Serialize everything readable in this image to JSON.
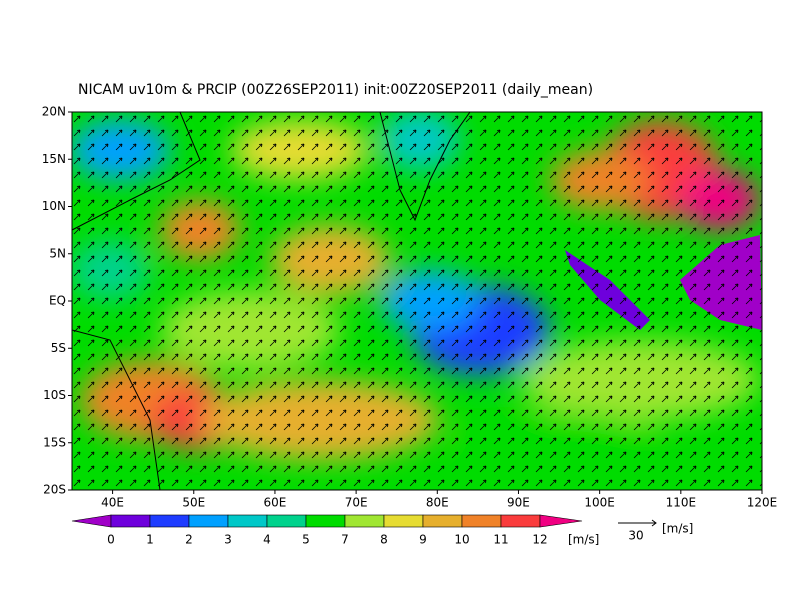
{
  "map": {
    "title": "NICAM uv10m & PRCIP (00Z26SEP2011) init:00Z20SEP2011 (daily_mean)",
    "xlim": [
      35,
      120
    ],
    "ylim": [
      -20,
      20
    ],
    "xticks": [
      {
        "value": 40,
        "label": "40E"
      },
      {
        "value": 50,
        "label": "50E"
      },
      {
        "value": 60,
        "label": "60E"
      },
      {
        "value": 70,
        "label": "70E"
      },
      {
        "value": 80,
        "label": "80E"
      },
      {
        "value": 90,
        "label": "90E"
      },
      {
        "value": 100,
        "label": "100E"
      },
      {
        "value": 110,
        "label": "110E"
      },
      {
        "value": 120,
        "label": "120E"
      }
    ],
    "yticks": [
      {
        "value": 20,
        "label": "20N"
      },
      {
        "value": 15,
        "label": "15N"
      },
      {
        "value": 10,
        "label": "10N"
      },
      {
        "value": 5,
        "label": "5N"
      },
      {
        "value": 0,
        "label": "EQ"
      },
      {
        "value": -5,
        "label": "5S"
      },
      {
        "value": -10,
        "label": "10S"
      },
      {
        "value": -15,
        "label": "15S"
      },
      {
        "value": -20,
        "label": "20S"
      }
    ],
    "colorbar": {
      "ticks": [
        0,
        1,
        2,
        3,
        4,
        5,
        7,
        8,
        9,
        10,
        11,
        12
      ],
      "colors": [
        "#a000c8",
        "#6e00dc",
        "#1e3cff",
        "#00a0ff",
        "#00c8c8",
        "#00d28c",
        "#00dc00",
        "#a0e632",
        "#e6dc32",
        "#e6af2d",
        "#f08228",
        "#fa3c3c",
        "#f00082"
      ],
      "unit": "[m/s]"
    },
    "reference_vector": {
      "value": 30,
      "unit": "[m/s]"
    }
  }
}
